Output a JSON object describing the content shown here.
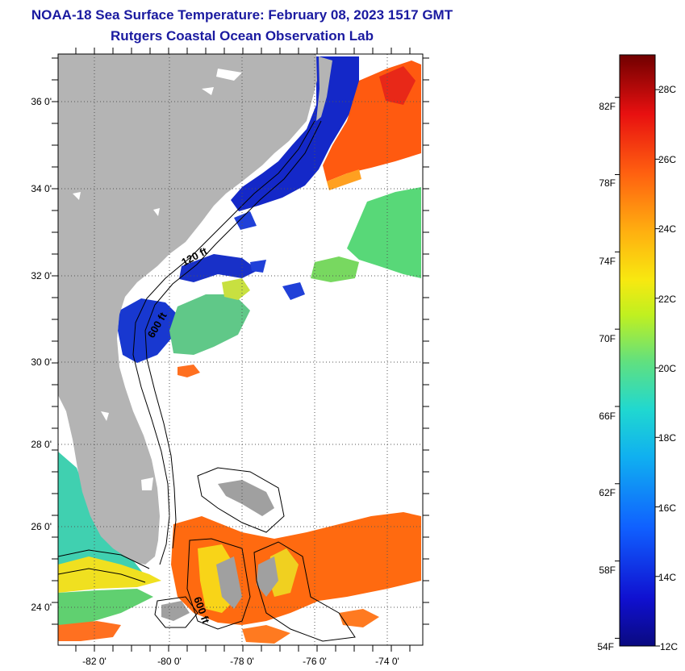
{
  "header": {
    "title": "NOAA-18 Sea Surface Temperature:  February 08, 2023 1517 GMT",
    "subtitle": "Rutgers Coastal Ocean Observation Lab"
  },
  "map": {
    "lat_ticks": [
      "36 0'",
      "34 0'",
      "32 0'",
      "30 0'",
      "28 0'",
      "26 0'",
      "24 0'"
    ],
    "lon_ticks": [
      "-82 0'",
      "-80 0'",
      "-78 0'",
      "-76 0'",
      "-74 0'"
    ],
    "contour_labels": [
      "120 ft",
      "600 ft",
      "600 ft"
    ],
    "colors": {
      "land": "#b4b4b4",
      "cloud": "#ffffff",
      "cold": "#1020c0",
      "warm": "#ff6a10"
    }
  },
  "colorbar": {
    "fahrenheit": [
      "82F",
      "78F",
      "74F",
      "70F",
      "66F",
      "62F",
      "58F",
      "54F"
    ],
    "celsius": [
      "28C",
      "26C",
      "24C",
      "22C",
      "20C",
      "18C",
      "16C",
      "14C",
      "12C"
    ],
    "range_c": [
      12,
      29
    ]
  }
}
